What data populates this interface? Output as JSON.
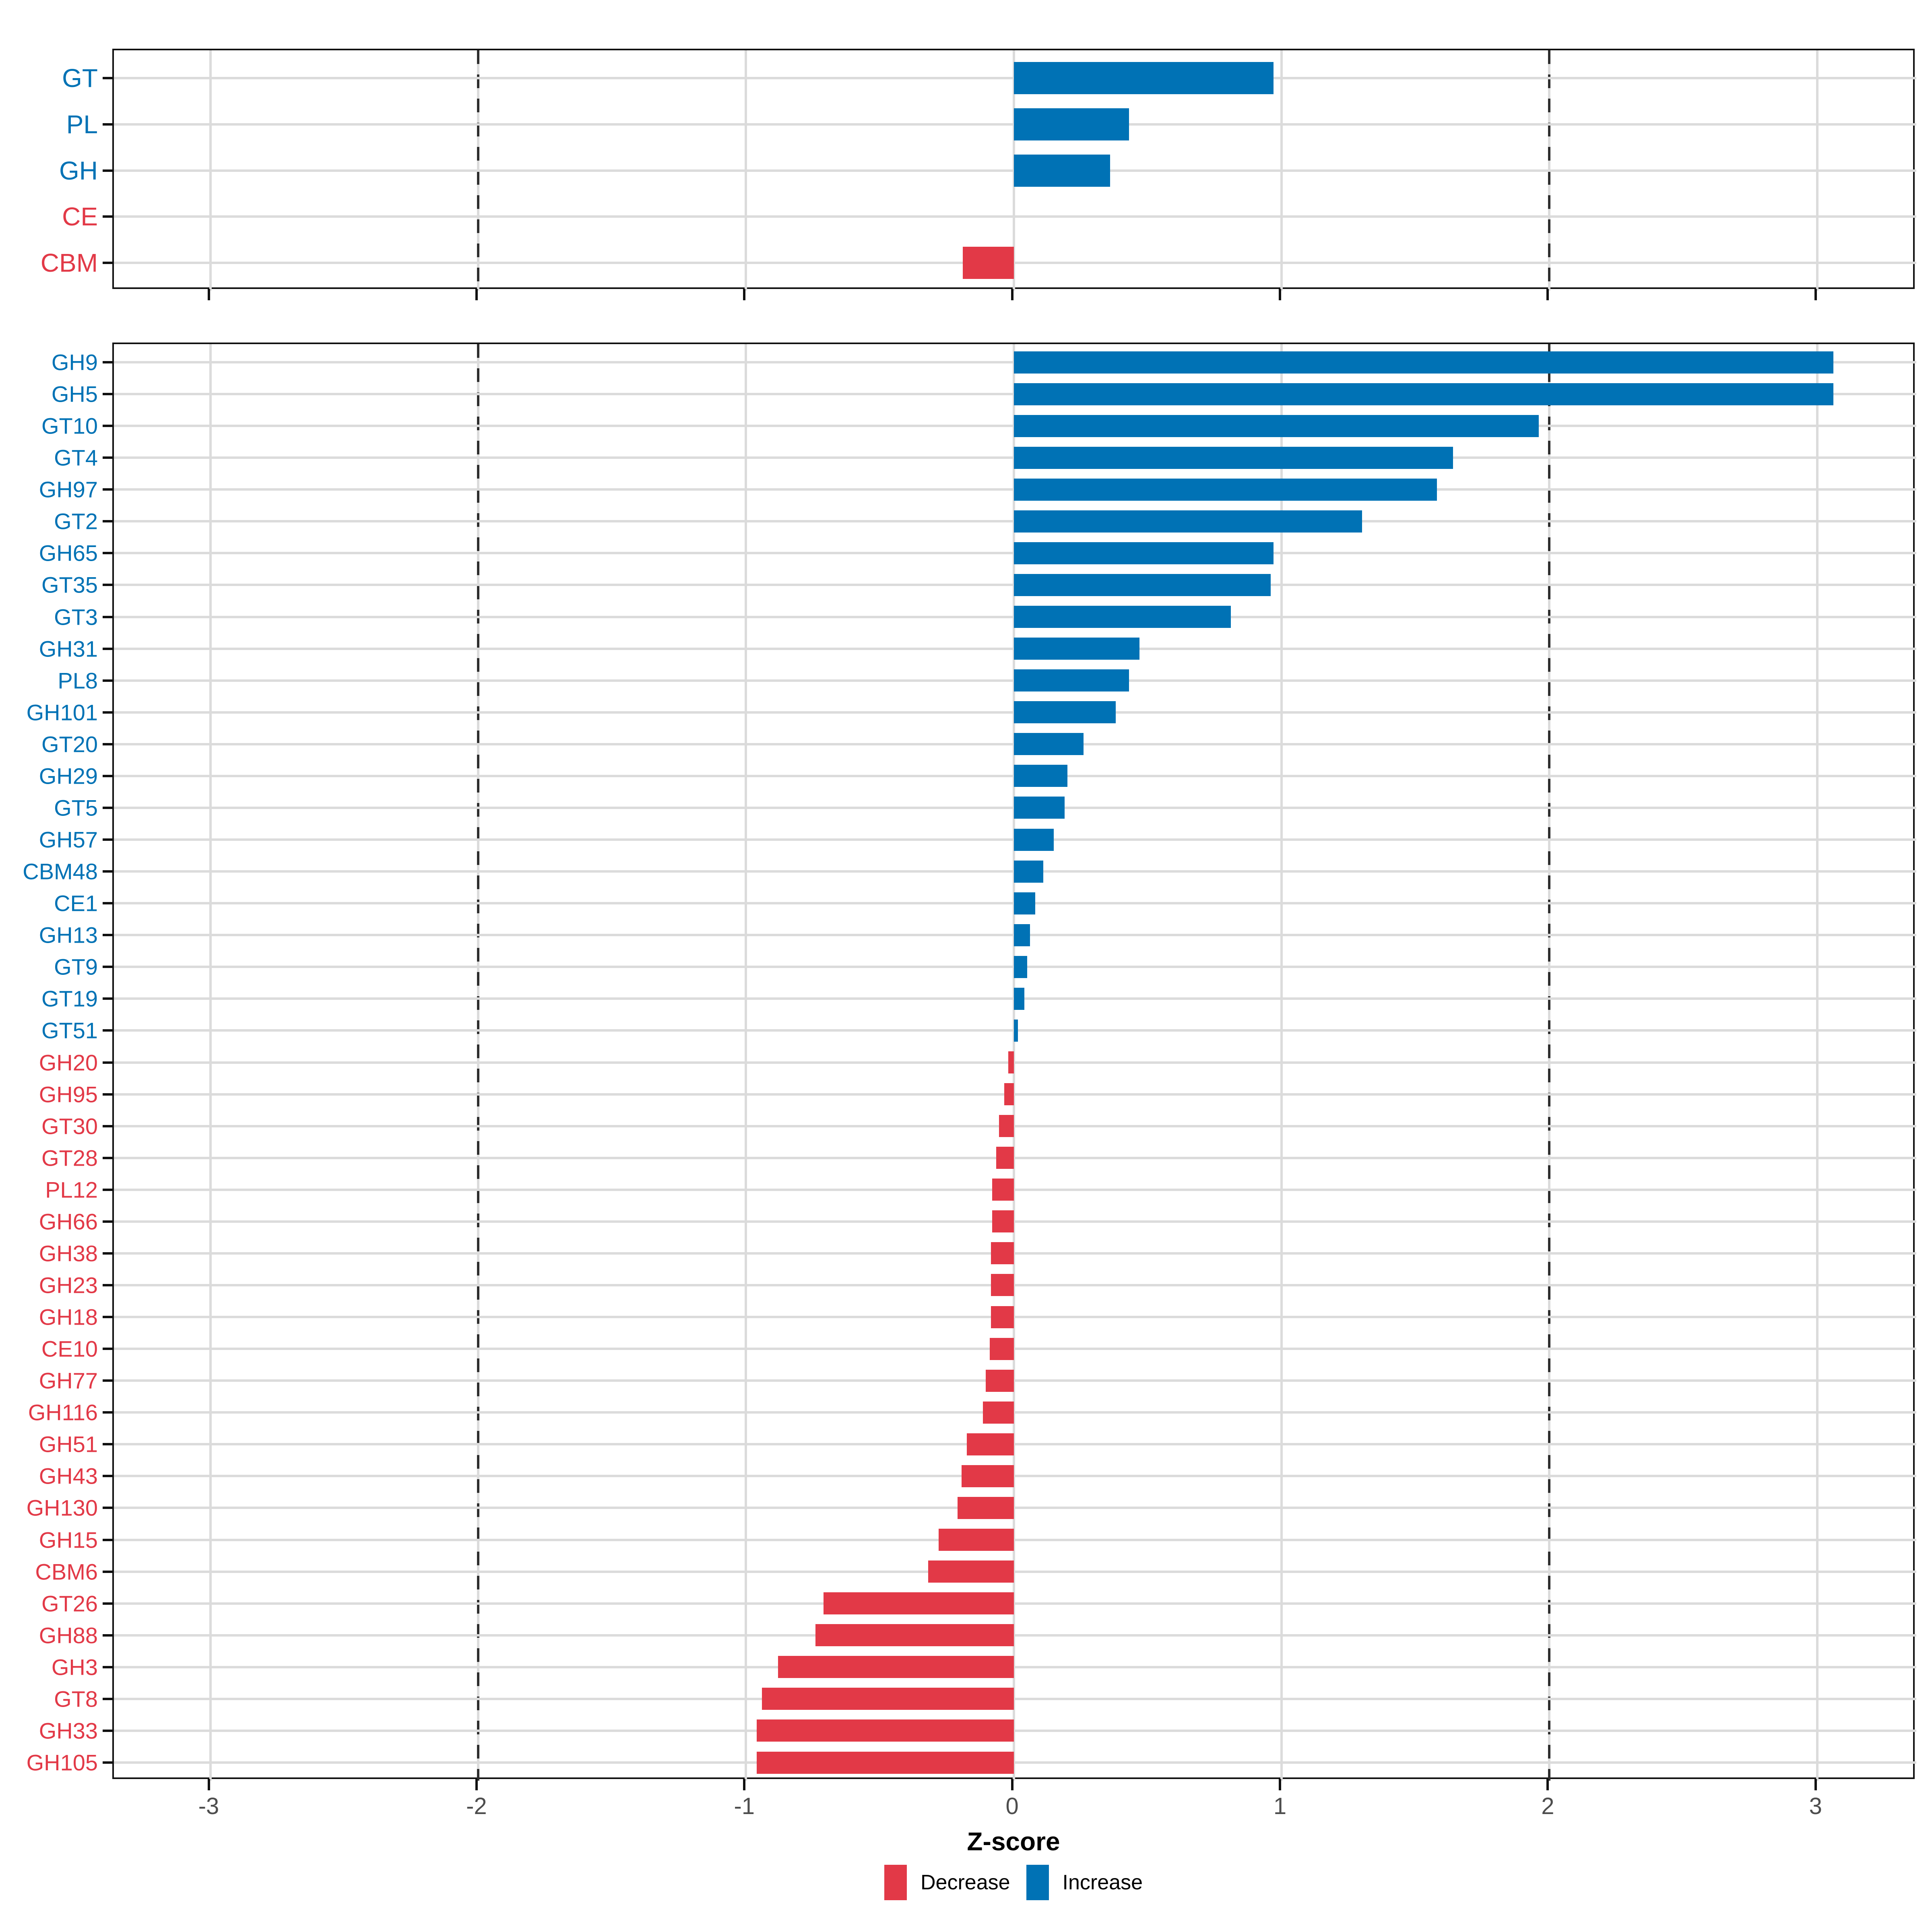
{
  "chart_data": {
    "type": "bar",
    "orientation": "horizontal",
    "xlabel": "Z-score",
    "x_ticks": [
      -3,
      -2,
      -1,
      0,
      1,
      2,
      3
    ],
    "x_tick_labels": [
      "-3",
      "-2",
      "-1",
      "0",
      "1",
      "2",
      "3"
    ],
    "xlim": [
      -3.36,
      3.37
    ],
    "dashed_vlines": [
      -2,
      2
    ],
    "grid": true,
    "legend_position": "bottom",
    "colors": {
      "increase": "#0072B5",
      "decrease": "#E23947",
      "tick_label": "#4D4D4D",
      "gridline": "#DBDBDB",
      "dashed_line": "#2E2E2E",
      "panel_border": "#111111"
    },
    "panels": [
      {
        "name": "enzyme-class-summary",
        "rows": [
          {
            "label": "GT",
            "value": 0.97,
            "dir": "increase"
          },
          {
            "label": "PL",
            "value": 0.43,
            "dir": "increase"
          },
          {
            "label": "GH",
            "value": 0.36,
            "dir": "increase"
          },
          {
            "label": "CE",
            "value": 0.0,
            "dir": "decrease"
          },
          {
            "label": "CBM",
            "value": -0.19,
            "dir": "decrease"
          }
        ]
      },
      {
        "name": "enzyme-family-detail",
        "rows": [
          {
            "label": "GH9",
            "value": 3.06,
            "dir": "increase"
          },
          {
            "label": "GH5",
            "value": 3.06,
            "dir": "increase"
          },
          {
            "label": "GT10",
            "value": 1.96,
            "dir": "increase"
          },
          {
            "label": "GT4",
            "value": 1.64,
            "dir": "increase"
          },
          {
            "label": "GH97",
            "value": 1.58,
            "dir": "increase"
          },
          {
            "label": "GT2",
            "value": 1.3,
            "dir": "increase"
          },
          {
            "label": "GH65",
            "value": 0.97,
            "dir": "increase"
          },
          {
            "label": "GT35",
            "value": 0.96,
            "dir": "increase"
          },
          {
            "label": "GT3",
            "value": 0.81,
            "dir": "increase"
          },
          {
            "label": "GH31",
            "value": 0.47,
            "dir": "increase"
          },
          {
            "label": "PL8",
            "value": 0.43,
            "dir": "increase"
          },
          {
            "label": "GH101",
            "value": 0.38,
            "dir": "increase"
          },
          {
            "label": "GT20",
            "value": 0.26,
            "dir": "increase"
          },
          {
            "label": "GH29",
            "value": 0.2,
            "dir": "increase"
          },
          {
            "label": "GT5",
            "value": 0.19,
            "dir": "increase"
          },
          {
            "label": "GH57",
            "value": 0.15,
            "dir": "increase"
          },
          {
            "label": "CBM48",
            "value": 0.11,
            "dir": "increase"
          },
          {
            "label": "CE1",
            "value": 0.08,
            "dir": "increase"
          },
          {
            "label": "GH13",
            "value": 0.06,
            "dir": "increase"
          },
          {
            "label": "GT9",
            "value": 0.05,
            "dir": "increase"
          },
          {
            "label": "GT19",
            "value": 0.04,
            "dir": "increase"
          },
          {
            "label": "GT51",
            "value": 0.015,
            "dir": "increase"
          },
          {
            "label": "GH20",
            "value": -0.02,
            "dir": "decrease"
          },
          {
            "label": "GH95",
            "value": -0.035,
            "dir": "decrease"
          },
          {
            "label": "GT30",
            "value": -0.055,
            "dir": "decrease"
          },
          {
            "label": "GT28",
            "value": -0.065,
            "dir": "decrease"
          },
          {
            "label": "PL12",
            "value": -0.08,
            "dir": "decrease"
          },
          {
            "label": "GH66",
            "value": -0.08,
            "dir": "decrease"
          },
          {
            "label": "GH38",
            "value": -0.085,
            "dir": "decrease"
          },
          {
            "label": "GH23",
            "value": -0.085,
            "dir": "decrease"
          },
          {
            "label": "GH18",
            "value": -0.085,
            "dir": "decrease"
          },
          {
            "label": "CE10",
            "value": -0.09,
            "dir": "decrease"
          },
          {
            "label": "GH77",
            "value": -0.105,
            "dir": "decrease"
          },
          {
            "label": "GH116",
            "value": -0.115,
            "dir": "decrease"
          },
          {
            "label": "GH51",
            "value": -0.175,
            "dir": "decrease"
          },
          {
            "label": "GH43",
            "value": -0.195,
            "dir": "decrease"
          },
          {
            "label": "GH130",
            "value": -0.21,
            "dir": "decrease"
          },
          {
            "label": "GH15",
            "value": -0.28,
            "dir": "decrease"
          },
          {
            "label": "CBM6",
            "value": -0.32,
            "dir": "decrease"
          },
          {
            "label": "GT26",
            "value": -0.71,
            "dir": "decrease"
          },
          {
            "label": "GH88",
            "value": -0.74,
            "dir": "decrease"
          },
          {
            "label": "GH3",
            "value": -0.88,
            "dir": "decrease"
          },
          {
            "label": "GT8",
            "value": -0.94,
            "dir": "decrease"
          },
          {
            "label": "GH33",
            "value": -0.96,
            "dir": "decrease"
          },
          {
            "label": "GH105",
            "value": -0.96,
            "dir": "decrease"
          }
        ]
      }
    ]
  },
  "legend": {
    "items": [
      {
        "label": "Decrease",
        "color": "#E23947",
        "key": "decrease"
      },
      {
        "label": "Increase",
        "color": "#0072B5",
        "key": "increase"
      }
    ]
  }
}
